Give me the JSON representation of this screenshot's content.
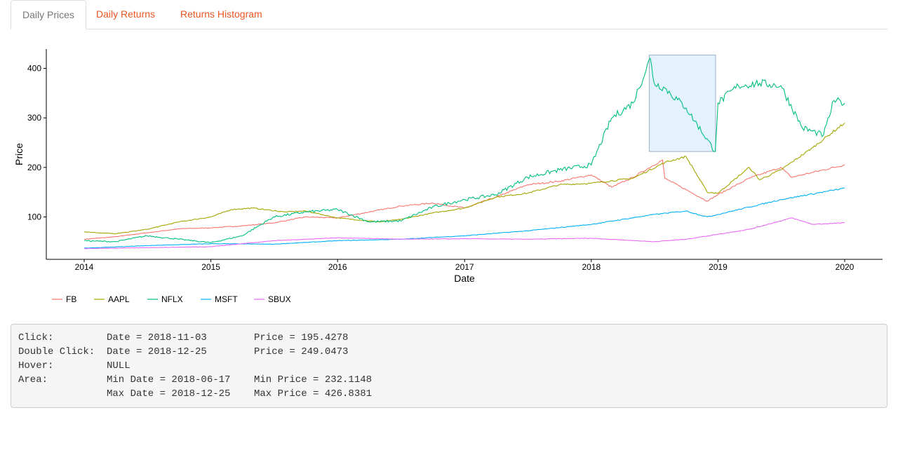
{
  "tabs": [
    {
      "label": "Daily Prices",
      "active": true
    },
    {
      "label": "Daily Returns",
      "active": false
    },
    {
      "label": "Returns Histogram",
      "active": false
    }
  ],
  "colors": {
    "accent": "#e95420",
    "series": {
      "FB": "#f8766d",
      "AAPL": "#a3a500",
      "NFLX": "#00bf7d",
      "MSFT": "#00b0f6",
      "SBUX": "#e76bf3"
    },
    "brush_fill": "#dbeefd",
    "brush_stroke": "#9ab0c8"
  },
  "chart_data": {
    "type": "line",
    "title": "",
    "xlabel": "Date",
    "ylabel": "Price",
    "x_ticks": [
      "2014",
      "2015",
      "2016",
      "2017",
      "2018",
      "2019",
      "2020"
    ],
    "y_ticks": [
      "100",
      "200",
      "300",
      "400"
    ],
    "xlim": [
      "2014-01-01",
      "2020-01-01"
    ],
    "ylim": [
      20,
      440
    ],
    "grid": false,
    "legend_position": "bottom-left",
    "series": [
      {
        "name": "FB",
        "x": [
          "2014-01",
          "2014-04",
          "2014-07",
          "2014-10",
          "2015-01",
          "2015-04",
          "2015-07",
          "2015-10",
          "2016-01",
          "2016-04",
          "2016-07",
          "2016-10",
          "2017-01",
          "2017-04",
          "2017-07",
          "2017-10",
          "2018-01",
          "2018-03",
          "2018-05",
          "2018-07-25",
          "2018-08",
          "2018-10",
          "2018-12",
          "2019-01",
          "2019-04",
          "2019-07",
          "2019-08",
          "2019-10",
          "2020-01"
        ],
        "values": [
          55,
          60,
          68,
          76,
          78,
          82,
          88,
          100,
          98,
          110,
          122,
          128,
          118,
          140,
          165,
          172,
          185,
          160,
          180,
          215,
          178,
          155,
          132,
          145,
          178,
          200,
          180,
          190,
          205
        ]
      },
      {
        "name": "AAPL",
        "x": [
          "2014-01",
          "2014-04",
          "2014-07",
          "2014-10",
          "2015-01",
          "2015-03",
          "2015-05",
          "2015-08",
          "2015-10",
          "2016-01",
          "2016-05",
          "2016-07",
          "2016-10",
          "2017-01",
          "2017-04",
          "2017-07",
          "2017-10",
          "2018-01",
          "2018-05",
          "2018-08",
          "2018-10",
          "2018-12",
          "2019-01",
          "2019-04",
          "2019-05",
          "2019-07",
          "2019-10",
          "2020-01"
        ],
        "values": [
          70,
          66,
          75,
          90,
          100,
          115,
          118,
          110,
          112,
          98,
          90,
          95,
          108,
          118,
          140,
          148,
          165,
          168,
          178,
          210,
          222,
          150,
          148,
          200,
          175,
          195,
          240,
          290
        ]
      },
      {
        "name": "NFLX",
        "x": [
          "2014-01",
          "2014-04",
          "2014-07",
          "2014-10",
          "2015-01",
          "2015-04",
          "2015-07",
          "2015-10",
          "2016-01",
          "2016-04",
          "2016-07",
          "2016-10",
          "2017-01",
          "2017-04",
          "2017-07",
          "2017-10",
          "2018-01",
          "2018-03",
          "2018-05",
          "2018-06-20",
          "2018-07",
          "2018-08",
          "2018-10",
          "2018-12-24",
          "2019-01",
          "2019-03",
          "2019-05",
          "2019-07",
          "2019-09",
          "2019-11",
          "2019-12",
          "2020-01"
        ],
        "values": [
          52,
          50,
          62,
          55,
          48,
          62,
          100,
          110,
          115,
          90,
          92,
          120,
          135,
          145,
          180,
          195,
          205,
          300,
          330,
          420,
          370,
          360,
          320,
          232,
          330,
          365,
          370,
          365,
          280,
          265,
          335,
          330
        ]
      },
      {
        "name": "MSFT",
        "x": [
          "2014-01",
          "2014-07",
          "2015-01",
          "2015-07",
          "2016-01",
          "2016-07",
          "2017-01",
          "2017-07",
          "2018-01",
          "2018-07",
          "2018-10",
          "2018-12",
          "2019-01",
          "2019-07",
          "2020-01"
        ],
        "values": [
          37,
          42,
          46,
          45,
          52,
          55,
          62,
          72,
          85,
          105,
          112,
          100,
          105,
          135,
          158
        ]
      },
      {
        "name": "SBUX",
        "x": [
          "2014-01",
          "2014-07",
          "2015-01",
          "2015-07",
          "2016-01",
          "2016-07",
          "2017-01",
          "2017-07",
          "2018-01",
          "2018-07",
          "2018-10",
          "2019-01",
          "2019-04",
          "2019-08",
          "2019-10",
          "2020-01"
        ],
        "values": [
          36,
          38,
          40,
          52,
          58,
          55,
          56,
          55,
          57,
          50,
          55,
          65,
          75,
          98,
          85,
          88
        ]
      }
    ],
    "selection": {
      "x_min": "2018-06-17",
      "x_max": "2018-12-25",
      "y_min": 232.1148,
      "y_max": 426.8381
    }
  },
  "output": {
    "rows": [
      {
        "label": "Click:",
        "date": "Date = 2018-11-03",
        "price": "Price = 195.4278"
      },
      {
        "label": "Double Click:",
        "date": "Date = 2018-12-25",
        "price": "Price = 249.0473"
      },
      {
        "label": "Hover:",
        "date": "NULL",
        "price": ""
      },
      {
        "label": "Area:",
        "date": "Min Date = 2018-06-17",
        "price": "Min Price = 232.1148"
      },
      {
        "label": "",
        "date": "Max Date = 2018-12-25",
        "price": "Max Price = 426.8381"
      }
    ]
  }
}
